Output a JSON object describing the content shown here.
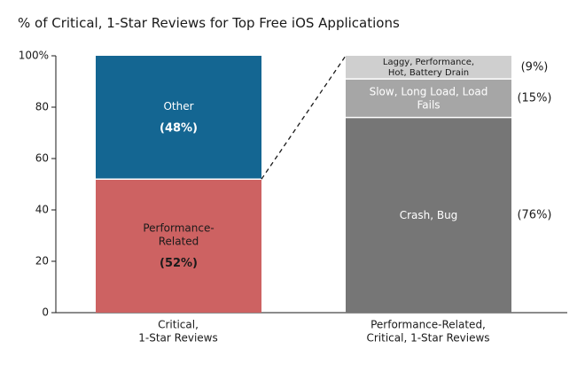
{
  "chart_data": {
    "type": "bar",
    "stacked": true,
    "title": "% of Critical, 1-Star Reviews for Top Free iOS Applications",
    "ylim": [
      0,
      100
    ],
    "yticks": [
      0,
      20,
      40,
      60,
      80,
      100
    ],
    "ytick_labels": [
      "0",
      "20",
      "40",
      "60",
      "80",
      "100%"
    ],
    "bars": [
      {
        "category": "Critical,\n1-Star Reviews",
        "segments": [
          {
            "label": "Performance-\nRelated",
            "pct_label": "(52%)",
            "value": 52,
            "color": "#cd6262",
            "text_color": "#1a1a1a"
          },
          {
            "label": "Other",
            "pct_label": "(48%)",
            "value": 48,
            "color": "#146692",
            "text_color": "#ffffff"
          }
        ]
      },
      {
        "category": "Performance-Related,\nCritical, 1-Star Reviews",
        "segments": [
          {
            "label": "Crash, Bug",
            "pct_label": "(76%)",
            "value": 76,
            "color": "#767676",
            "text_color": "#ffffff"
          },
          {
            "label": "Slow, Long Load, Load\nFails",
            "pct_label": "(15%)",
            "value": 15,
            "color": "#a6a6a6",
            "text_color": "#ffffff"
          },
          {
            "label": "Laggy, Performance,\nHot, Battery Drain",
            "pct_label": "(9%)",
            "value": 9,
            "color": "#cfcfcf",
            "text_color": "#1a1a1a"
          }
        ]
      }
    ],
    "grid": false,
    "legend": "none"
  }
}
